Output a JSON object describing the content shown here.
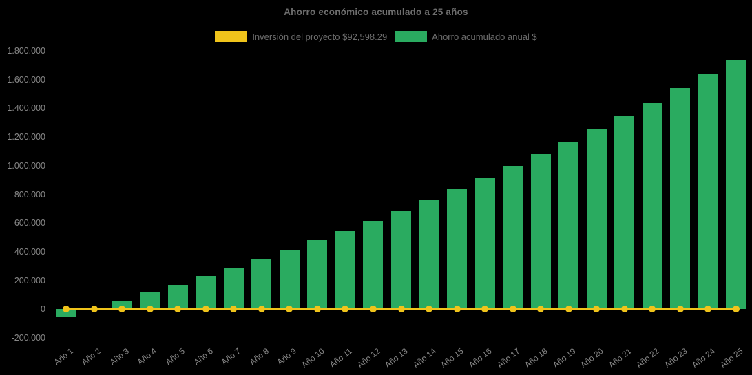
{
  "title": "Ahorro económico acumulado a 25 años",
  "legend": {
    "items": [
      {
        "label": "Inversión del proyecto $92,598.29",
        "color": "#f0c41b",
        "series_type": "line"
      },
      {
        "label": "Ahorro acumulado anual $",
        "color": "#2aab60",
        "series_type": "bar"
      }
    ]
  },
  "colors": {
    "background": "#000000",
    "bar_green": "#2aab60",
    "line_yellow": "#f0c41b",
    "title_text": "#6d6d6d",
    "tick_text": "#878787"
  },
  "chart_data": {
    "type": "bar",
    "title": "Ahorro económico acumulado a 25 años",
    "categories": [
      "Año 1",
      "Año 2",
      "Año 3",
      "Año 4",
      "Año 5",
      "Año 6",
      "Año 7",
      "Año 8",
      "Año 9",
      "Año 10",
      "Año 11",
      "Año 12",
      "Año 13",
      "Año 14",
      "Año 15",
      "Año 16",
      "Año 17",
      "Año 18",
      "Año 19",
      "Año 20",
      "Año 21",
      "Año 22",
      "Año 23",
      "Año 24",
      "Año 25"
    ],
    "series": [
      {
        "name": "Inversión del proyecto $92,598.29",
        "type": "line",
        "color": "#f0c41b",
        "values": [
          0,
          0,
          0,
          0,
          0,
          0,
          0,
          0,
          0,
          0,
          0,
          0,
          0,
          0,
          0,
          0,
          0,
          0,
          0,
          0,
          0,
          0,
          0,
          0,
          0
        ]
      },
      {
        "name": "Ahorro acumulado anual $",
        "type": "bar",
        "color": "#2aab60",
        "values": [
          -55000,
          2000,
          56000,
          115000,
          170000,
          230000,
          289000,
          351000,
          415000,
          481000,
          546000,
          615000,
          688000,
          762000,
          840000,
          919000,
          1000000,
          1081000,
          1166000,
          1252000,
          1343000,
          1440000,
          1540000,
          1637000,
          1737000
        ]
      }
    ],
    "ylim": [
      -200000,
      1800000
    ],
    "y_tick_step": 200000,
    "y_ticks": [
      {
        "label": "1.800.000",
        "value": 1800000
      },
      {
        "label": "1.600.000",
        "value": 1600000
      },
      {
        "label": "1.400.000",
        "value": 1400000
      },
      {
        "label": "1.200.000",
        "value": 1200000
      },
      {
        "label": "1.000.000",
        "value": 1000000
      },
      {
        "label": "800.000",
        "value": 800000
      },
      {
        "label": "600.000",
        "value": 600000
      },
      {
        "label": "400.000",
        "value": 400000
      },
      {
        "label": "200.000",
        "value": 200000
      },
      {
        "label": "0",
        "value": 0
      },
      {
        "label": "-200.000",
        "value": -200000
      }
    ],
    "grid": false,
    "legend_position": "top",
    "x_label_rotation_deg": -38
  }
}
